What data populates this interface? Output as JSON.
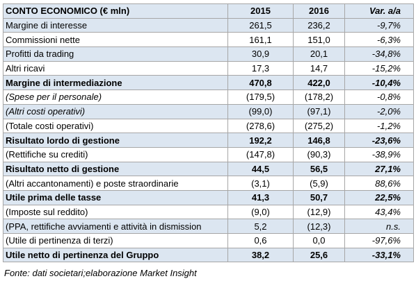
{
  "table": {
    "header": [
      "CONTO ECONOMICO (€ mln)",
      "2015",
      "2016",
      "Var.  a/a"
    ],
    "rows": [
      [
        "Margine di interesse",
        "261,5",
        "236,2",
        "-9,7%"
      ],
      [
        "Commissioni nette",
        "161,1",
        "151,0",
        "-6,3%"
      ],
      [
        "Profitti da trading",
        "30,9",
        "20,1",
        "-34,8%"
      ],
      [
        "Altri ricavi",
        "17,3",
        "14,7",
        "-15,2%"
      ],
      [
        "Margine di intermediazione",
        "470,8",
        "422,0",
        "-10,4%"
      ],
      [
        "(Spese per il personale)",
        "(179,5)",
        "(178,2)",
        "-0,8%"
      ],
      [
        "(Altri costi operativi)",
        "(99,0)",
        "(97,1)",
        "-2,0%"
      ],
      [
        "(Totale costi operativi)",
        "(278,6)",
        "(275,2)",
        "-1,2%"
      ],
      [
        "Risultato lordo di gestione",
        "192,2",
        "146,8",
        "-23,6%"
      ],
      [
        "(Rettifiche su crediti)",
        "(147,8)",
        "(90,3)",
        "-38,9%"
      ],
      [
        "Risultato netto di gestione",
        "44,5",
        "56,5",
        "27,1%"
      ],
      [
        "(Altri accantonamenti) e poste straordinarie",
        "(3,1)",
        "(5,9)",
        "88,6%"
      ],
      [
        "Utile prima delle tasse",
        "41,3",
        "50,7",
        "22,5%"
      ],
      [
        "(Imposte sul reddito)",
        "(9,0)",
        "(12,9)",
        "43,4%"
      ],
      [
        "(PPA, rettifiche avviamenti e attività in dismission",
        "5,2",
        "(12,3)",
        "n.s."
      ],
      [
        "(Utile di pertinenza di terzi)",
        "0,6",
        "0,0",
        "-97,6%"
      ],
      [
        "Utile netto di pertinenza del Gruppo",
        "38,2",
        "25,6",
        "-33,1%"
      ]
    ]
  },
  "footer": "Fonte: dati societari;elaborazione Market Insight"
}
